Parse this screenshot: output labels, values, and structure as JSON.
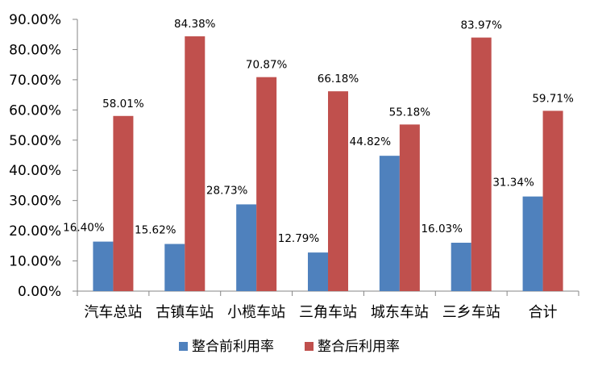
{
  "chart_data": {
    "type": "bar",
    "categories": [
      "汽车总站",
      "古镇车站",
      "小榄车站",
      "三角车站",
      "城东车站",
      "三乡车站",
      "合计"
    ],
    "series": [
      {
        "name": "整合前利用率",
        "color": "#4F81BD",
        "values": [
          16.4,
          15.62,
          28.73,
          12.79,
          44.82,
          16.03,
          31.34
        ],
        "labels": [
          "16.40%",
          "15.62%",
          "28.73%",
          "12.79%",
          "44.82%",
          "16.03%",
          "31.34%"
        ]
      },
      {
        "name": "整合后利用率",
        "color": "#C0504D",
        "values": [
          58.01,
          84.38,
          70.87,
          66.18,
          55.18,
          83.97,
          59.71
        ],
        "labels": [
          "58.01%",
          "84.38%",
          "70.87%",
          "66.18%",
          "55.18%",
          "83.97%",
          "59.71%"
        ]
      }
    ],
    "y_ticks": [
      "0.00%",
      "10.00%",
      "20.00%",
      "30.00%",
      "40.00%",
      "50.00%",
      "60.00%",
      "70.00%",
      "80.00%",
      "90.00%"
    ],
    "ylim": [
      0,
      90
    ],
    "grid": false,
    "legend_position": "bottom"
  }
}
